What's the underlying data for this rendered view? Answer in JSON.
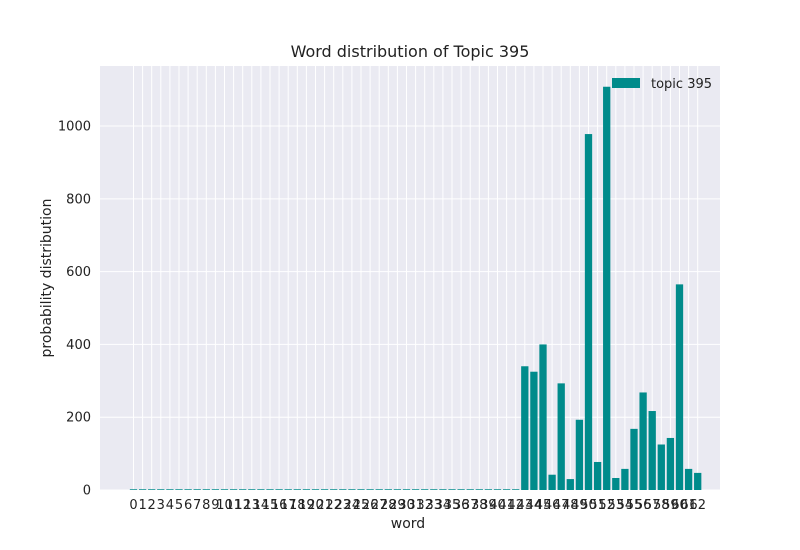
{
  "chart_data": {
    "type": "bar",
    "title": "Word distribution of Topic 395",
    "xlabel": "word",
    "ylabel": "probability distribution",
    "categories": [
      "0",
      "1",
      "2",
      "3",
      "4",
      "5",
      "6",
      "7",
      "8",
      "9",
      "10",
      "11",
      "12",
      "13",
      "14",
      "15",
      "16",
      "17",
      "18",
      "19",
      "20",
      "21",
      "22",
      "23",
      "24",
      "25",
      "26",
      "27",
      "28",
      "29",
      "30",
      "31",
      "32",
      "33",
      "34",
      "35",
      "36",
      "37",
      "38",
      "39",
      "40",
      "41",
      "42",
      "43",
      "44",
      "45",
      "46",
      "47",
      "48",
      "49",
      "50",
      "51",
      "52",
      "53",
      "54",
      "55",
      "56",
      "57",
      "58",
      "59",
      "60",
      "61",
      "62"
    ],
    "series": [
      {
        "name": "topic 395",
        "color": "#008b8b",
        "values": [
          2,
          2,
          2,
          2,
          2,
          2,
          2,
          2,
          2,
          2,
          2,
          2,
          2,
          2,
          2,
          2,
          2,
          2,
          2,
          2,
          2,
          2,
          2,
          2,
          2,
          2,
          2,
          2,
          2,
          2,
          2,
          2,
          2,
          2,
          2,
          2,
          2,
          2,
          2,
          2,
          2,
          2,
          2,
          340,
          325,
          400,
          42,
          293,
          30,
          193,
          978,
          77,
          1108,
          33,
          58,
          168,
          268,
          217,
          125,
          143,
          565,
          58,
          47
        ]
      }
    ],
    "ylim": [
      0,
      1165
    ],
    "yticks": [
      0,
      200,
      400,
      600,
      800,
      1000
    ],
    "grid": true,
    "legend_position": "top-right",
    "background": "#eaeaf2"
  }
}
